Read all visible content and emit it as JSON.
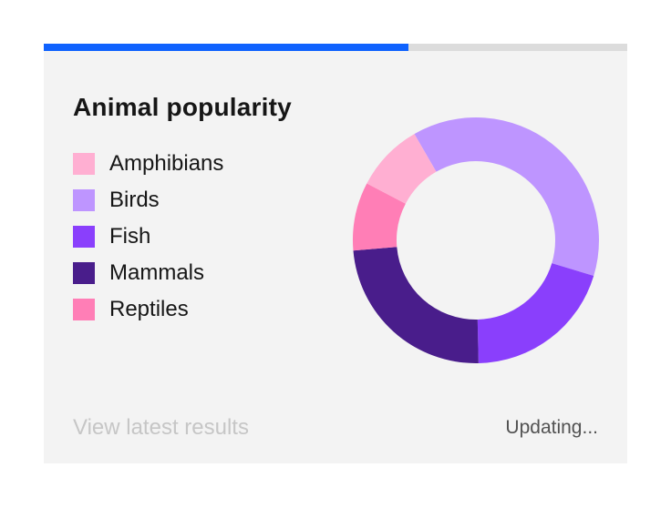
{
  "card": {
    "title": "Animal popularity",
    "progress_percent": 62.5,
    "link_label": "View latest results",
    "status_text": "Updating..."
  },
  "colors": {
    "progress_fill": "#0f62fe",
    "progress_track": "#dcdcdc",
    "card_background": "#f3f3f3"
  },
  "chart_data": {
    "type": "pie",
    "style": "donut",
    "title": "Animal popularity",
    "legend_position": "left",
    "categories": [
      "Amphibians",
      "Birds",
      "Fish",
      "Mammals",
      "Reptiles"
    ],
    "values": [
      9,
      38,
      20,
      24,
      9
    ],
    "colors": [
      "#ffafd2",
      "#be95ff",
      "#8a3ffc",
      "#491d8b",
      "#ff7eb6"
    ],
    "start_angle_deg": -30,
    "order_clockwise": [
      "Birds",
      "Fish",
      "Mammals",
      "Reptiles",
      "Amphibians"
    ]
  }
}
